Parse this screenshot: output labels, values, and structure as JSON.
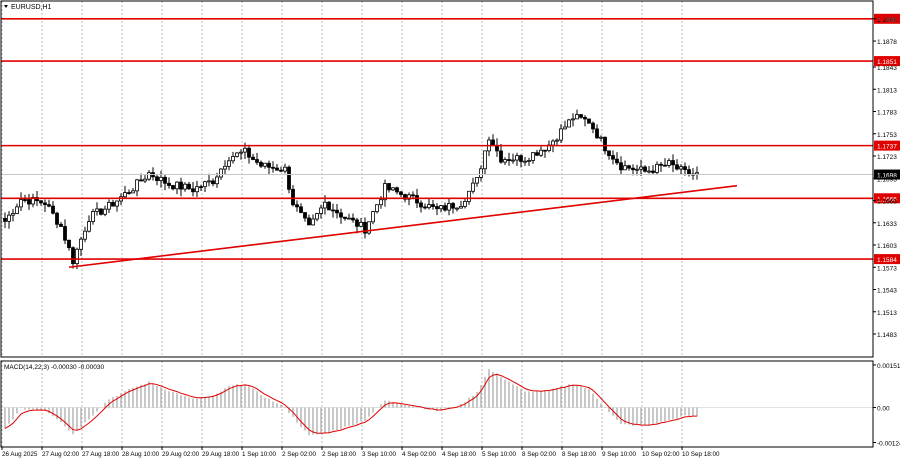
{
  "symbol_label": "EURUSD,H1",
  "colors": {
    "grid": "#b8b8b8",
    "frame": "#000000",
    "level": "#e00000",
    "trend": "#e00000",
    "candle": "#000000",
    "macd_hist": "#b0b0b0",
    "macd_signal": "#e00000",
    "current_price_bg": "#000000",
    "level_label_bg": "#e00000"
  },
  "chart_data": [
    {
      "type": "candlestick",
      "title": "EURUSD,H1",
      "ylim": [
        1.1452,
        1.1932
      ],
      "y_ticks": [
        "1.1908",
        "1.1878",
        "1.1843",
        "1.1813",
        "1.1783",
        "1.1753",
        "1.1723",
        "1.1693",
        "1.1663",
        "1.1633",
        "1.1603",
        "1.1573",
        "1.1543",
        "1.1513",
        "1.1483"
      ],
      "x_ticks": [
        "26 Aug 2025",
        "27 Aug 02:00",
        "27 Aug 18:00",
        "28 Aug 10:00",
        "29 Aug 02:00",
        "29 Aug 18:00",
        "1 Sep 10:00",
        "2 Sep 02:00",
        "2 Sep 18:00",
        "3 Sep 10:00",
        "4 Sep 02:00",
        "4 Sep 18:00",
        "5 Sep 10:00",
        "8 Sep 02:00",
        "8 Sep 18:00",
        "9 Sep 10:00",
        "10 Sep 02:00",
        "10 Sep 18:00"
      ],
      "levels": [
        {
          "value": 1.1908,
          "label": "1.1908"
        },
        {
          "value": 1.1851,
          "label": "1.1851"
        },
        {
          "value": 1.1737,
          "label": "1.1737"
        },
        {
          "value": 1.1666,
          "label": "1.1666"
        },
        {
          "value": 1.1584,
          "label": "1.1584"
        }
      ],
      "current_price": {
        "value": 1.1698,
        "label": "1.1698"
      },
      "trendline": {
        "from": {
          "bar": 16,
          "value": 1.1573
        },
        "to": {
          "bar": 183,
          "value": 1.1683
        }
      },
      "close_path": [
        [
          0,
          1.1635
        ],
        [
          4,
          1.1665
        ],
        [
          10,
          1.166
        ],
        [
          14,
          1.1628
        ],
        [
          17,
          1.1582
        ],
        [
          21,
          1.164
        ],
        [
          26,
          1.1655
        ],
        [
          32,
          1.168
        ],
        [
          36,
          1.17
        ],
        [
          41,
          1.1685
        ],
        [
          47,
          1.1678
        ],
        [
          52,
          1.169
        ],
        [
          56,
          1.1722
        ],
        [
          60,
          1.1728
        ],
        [
          64,
          1.171
        ],
        [
          70,
          1.1705
        ],
        [
          72,
          1.166
        ],
        [
          76,
          1.1625
        ],
        [
          80,
          1.166
        ],
        [
          85,
          1.164
        ],
        [
          90,
          1.1625
        ],
        [
          95,
          1.168
        ],
        [
          102,
          1.1665
        ],
        [
          108,
          1.165
        ],
        [
          114,
          1.166
        ],
        [
          118,
          1.169
        ],
        [
          121,
          1.175
        ],
        [
          124,
          1.172
        ],
        [
          130,
          1.172
        ],
        [
          136,
          1.1738
        ],
        [
          142,
          1.1775
        ],
        [
          146,
          1.177
        ],
        [
          150,
          1.1735
        ],
        [
          154,
          1.171
        ],
        [
          160,
          1.1702
        ],
        [
          166,
          1.1712
        ],
        [
          170,
          1.17
        ],
        [
          173,
          1.1698
        ]
      ]
    },
    {
      "type": "bar",
      "title": "MACD(14,22,3) -0.00030 -0.00030",
      "ylim": [
        -0.0014,
        0.00165
      ],
      "y_ticks": [
        "0.00151",
        "0.00",
        "-0.00124"
      ],
      "histogram_path": [
        [
          0,
          -0.00075
        ],
        [
          4,
          -5e-05
        ],
        [
          10,
          -8e-05
        ],
        [
          14,
          -0.0005
        ],
        [
          17,
          -0.00095
        ],
        [
          21,
          -0.0004
        ],
        [
          26,
          0.0003
        ],
        [
          32,
          0.0007
        ],
        [
          36,
          0.0009
        ],
        [
          41,
          0.0006
        ],
        [
          47,
          0.0003
        ],
        [
          52,
          0.0004
        ],
        [
          56,
          0.00075
        ],
        [
          60,
          0.00085
        ],
        [
          64,
          0.00045
        ],
        [
          70,
          0.0
        ],
        [
          72,
          -0.00035
        ],
        [
          76,
          -0.001
        ],
        [
          80,
          -0.0009
        ],
        [
          85,
          -0.0007
        ],
        [
          90,
          -0.00045
        ],
        [
          95,
          0.00025
        ],
        [
          102,
          5e-05
        ],
        [
          108,
          -0.00012
        ],
        [
          114,
          0.0001
        ],
        [
          118,
          0.00055
        ],
        [
          121,
          0.00135
        ],
        [
          124,
          0.0011
        ],
        [
          130,
          0.00055
        ],
        [
          136,
          0.0006
        ],
        [
          142,
          0.00085
        ],
        [
          146,
          0.00065
        ],
        [
          150,
          0.0
        ],
        [
          154,
          -0.0006
        ],
        [
          160,
          -0.00065
        ],
        [
          166,
          -0.00045
        ],
        [
          170,
          -0.0003
        ],
        [
          173,
          -0.0003
        ]
      ]
    }
  ]
}
